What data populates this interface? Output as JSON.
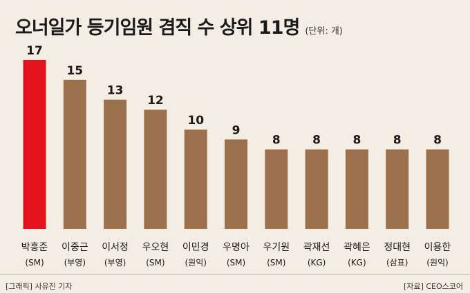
{
  "header": {
    "title": "오너일가 등기임원 겸직 수 상위 11명",
    "unit": "(단위: 개)"
  },
  "footer": {
    "left_credit": "[그래픽] 사유진 기자",
    "right_credit": "[자료] CEO스코어"
  },
  "chart_data": {
    "type": "bar",
    "categories": [
      "박흥준",
      "이중근",
      "이서정",
      "우오현",
      "이민경",
      "우명아",
      "우기원",
      "곽재선",
      "곽혜은",
      "정대현",
      "이용한"
    ],
    "groups": [
      "(SM)",
      "(부영)",
      "(부영)",
      "(SM)",
      "(원익)",
      "(SM)",
      "(SM)",
      "(KG)",
      "(KG)",
      "(삼표)",
      "(원익)"
    ],
    "values": [
      17,
      15,
      13,
      12,
      10,
      9,
      8,
      8,
      8,
      8,
      8
    ],
    "title": "오너일가 등기임원 겸직 수 상위 11명",
    "unit": "(단위: 개)",
    "ylim": [
      0,
      17
    ],
    "grid": false,
    "legend": "none",
    "colors": {
      "highlight": "#e3141e",
      "default": "#9a714c"
    }
  }
}
